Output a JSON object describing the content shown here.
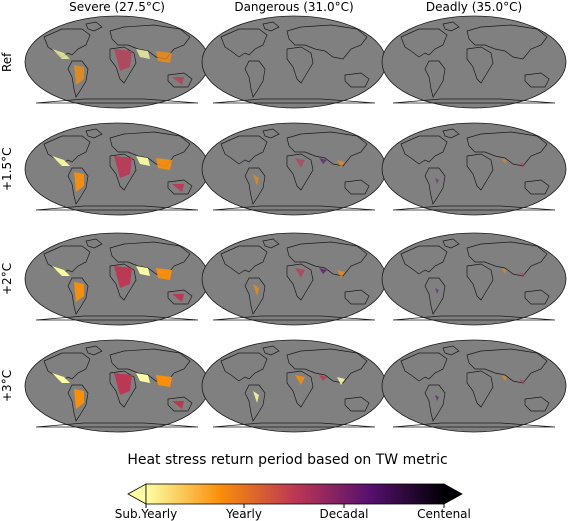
{
  "columns": [
    "Severe (27.5°C)",
    "Dangerous (31.0°C)",
    "Deadly (35.0°C)"
  ],
  "rows": [
    "Ref",
    "+1.5°C",
    "+2°C",
    "+3°C"
  ],
  "colorbar": {
    "title": "Heat stress return period based on TW metric",
    "ticks": [
      "Sub.Yearly",
      "Yearly",
      "Decadal",
      "Centenal"
    ],
    "colors": [
      "#fcffa4",
      "#f98e09",
      "#bc3754",
      "#57106e",
      "#000004"
    ]
  },
  "style": {
    "ocean": "#808080",
    "coast": "#1a1a1a"
  },
  "intensity": [
    [
      0.55,
      0.0,
      0.0
    ],
    [
      0.85,
      0.35,
      0.1
    ],
    [
      0.95,
      0.5,
      0.18
    ],
    [
      1.0,
      0.75,
      0.3
    ]
  ]
}
